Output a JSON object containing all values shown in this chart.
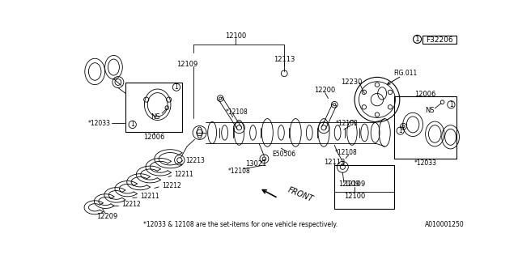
{
  "bg_color": "#ffffff",
  "line_color": "#000000",
  "fig_number": "F32206",
  "diagram_code": "A010001250",
  "note": "*12033 & 12108 are the set-items for one vehicle respectively."
}
